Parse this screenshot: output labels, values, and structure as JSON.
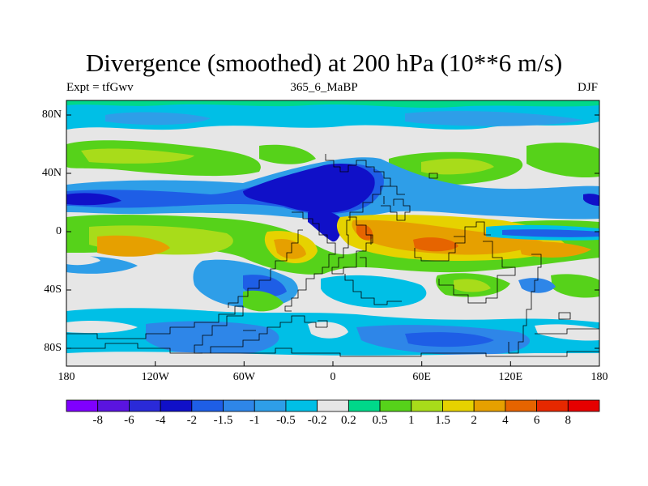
{
  "chart_data": {
    "type": "heatmap",
    "title": "Divergence (smoothed) at 200 hPa (10**6 m/s)",
    "subtitle_left": "Expt = tfGwv",
    "subtitle_center": "365_6_MaBP",
    "subtitle_right": "DJF",
    "xlabel": "",
    "ylabel": "",
    "xlim": [
      -180,
      180
    ],
    "ylim": [
      -90,
      90
    ],
    "x_ticks": [
      {
        "value": -180,
        "label": "180"
      },
      {
        "value": -120,
        "label": "120W"
      },
      {
        "value": -60,
        "label": "60W"
      },
      {
        "value": 0,
        "label": "0"
      },
      {
        "value": 60,
        "label": "60E"
      },
      {
        "value": 120,
        "label": "120E"
      },
      {
        "value": 180,
        "label": "180"
      }
    ],
    "y_ticks": [
      {
        "value": 80,
        "label": "80N"
      },
      {
        "value": 40,
        "label": "40N"
      },
      {
        "value": 0,
        "label": "0"
      },
      {
        "value": -40,
        "label": "40S"
      },
      {
        "value": -80,
        "label": "80S"
      }
    ],
    "contour_levels": [
      "-8",
      "-6",
      "-4",
      "-2",
      "-1.5",
      "-1",
      "-0.5",
      "-0.2",
      "0.2",
      "0.5",
      "1",
      "1.5",
      "2",
      "4",
      "6",
      "8"
    ],
    "colorbar_colors": [
      "#7f00ff",
      "#5a14e0",
      "#2a2ad8",
      "#1010c8",
      "#1e5ee6",
      "#2e86e8",
      "#2e9ee8",
      "#00bfe6",
      "#e6e6e6",
      "#00d88a",
      "#56d21a",
      "#a8dc1a",
      "#e6d200",
      "#e6a000",
      "#e66400",
      "#e62800",
      "#e60000"
    ],
    "regions": [
      {
        "lon": [
          -40,
          40
        ],
        "lat": [
          12,
          40
        ],
        "value": -3.5
      },
      {
        "lon": [
          -55,
          20
        ],
        "lat": [
          15,
          32
        ],
        "value": -2.5
      },
      {
        "lon": [
          -180,
          -140
        ],
        "lat": [
          14,
          26
        ],
        "value": -2.2
      },
      {
        "lon": [
          140,
          180
        ],
        "lat": [
          14,
          26
        ],
        "value": -2.0
      },
      {
        "lon": [
          -10,
          10
        ],
        "lat": [
          -2,
          18
        ],
        "value": -4.5
      },
      {
        "lon": [
          0,
          100
        ],
        "lat": [
          -25,
          5
        ],
        "value": 2.5
      },
      {
        "lon": [
          45,
          75
        ],
        "lat": [
          -20,
          -5
        ],
        "value": 4.5
      },
      {
        "lon": [
          10,
          35
        ],
        "lat": [
          -10,
          5
        ],
        "value": 3.5
      },
      {
        "lon": [
          -175,
          -125
        ],
        "lat": [
          -25,
          -5
        ],
        "value": 1.8
      },
      {
        "lon": [
          -40,
          -15
        ],
        "lat": [
          -30,
          -5
        ],
        "value": 1.5
      },
      {
        "lon": [
          -180,
          180
        ],
        "lat": [
          -90,
          -55
        ],
        "value": -0.8
      },
      {
        "lon": [
          -150,
          -60
        ],
        "lat": [
          -75,
          -45
        ],
        "value": -1.2
      }
    ]
  }
}
